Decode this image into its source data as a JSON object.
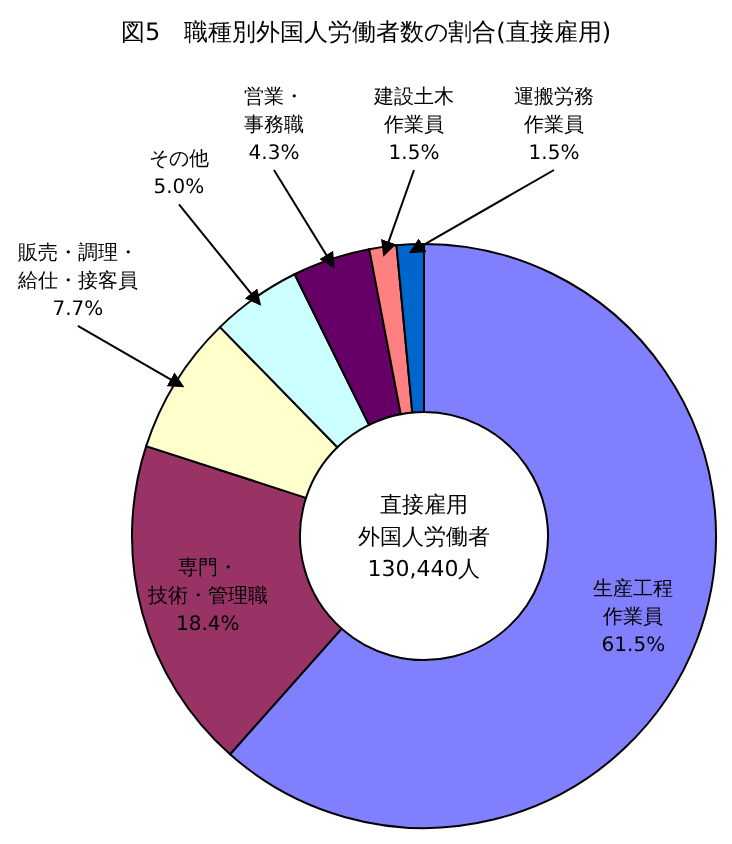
{
  "chart_data": {
    "type": "donut",
    "title": "図5　職種別外国人労働者数の割合(直接雇用)",
    "categories": [
      "生産工程作業員",
      "専門・技術・管理職",
      "販売・調理・給仕・接客員",
      "その他",
      "営業・事務職",
      "建設土木作業員",
      "運搬労務作業員"
    ],
    "values": [
      61.5,
      18.4,
      7.7,
      5.0,
      4.3,
      1.5,
      1.5
    ],
    "value_labels": [
      "61.5%",
      "18.4%",
      "7.7%",
      "5.0%",
      "4.3%",
      "1.5%",
      "1.5%"
    ],
    "colors": [
      "#8080ff",
      "#993366",
      "#ffffcc",
      "#ccffff",
      "#660066",
      "#ff8080",
      "#0066cc"
    ],
    "annotations": [
      "直接雇用",
      "外国人労働者",
      "130,440人"
    ]
  }
}
